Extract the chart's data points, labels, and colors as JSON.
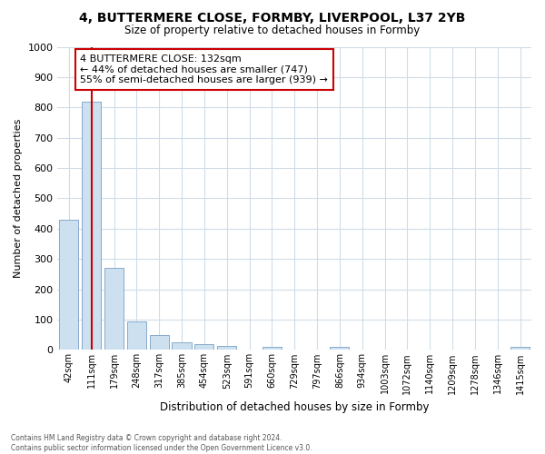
{
  "title_line1": "4, BUTTERMERE CLOSE, FORMBY, LIVERPOOL, L37 2YB",
  "title_line2": "Size of property relative to detached houses in Formby",
  "xlabel": "Distribution of detached houses by size in Formby",
  "ylabel": "Number of detached properties",
  "categories": [
    "42sqm",
    "111sqm",
    "179sqm",
    "248sqm",
    "317sqm",
    "385sqm",
    "454sqm",
    "523sqm",
    "591sqm",
    "660sqm",
    "729sqm",
    "797sqm",
    "866sqm",
    "934sqm",
    "1003sqm",
    "1072sqm",
    "1140sqm",
    "1209sqm",
    "1278sqm",
    "1346sqm",
    "1415sqm"
  ],
  "values": [
    430,
    820,
    270,
    95,
    50,
    25,
    18,
    13,
    0,
    10,
    0,
    0,
    10,
    0,
    0,
    0,
    0,
    0,
    0,
    0,
    10
  ],
  "bar_color": "#cce0f0",
  "bar_edge_color": "#88aacc",
  "highlight_index": 1,
  "vline_color": "#cc0000",
  "annotation_text": "4 BUTTERMERE CLOSE: 132sqm\n← 44% of detached houses are smaller (747)\n55% of semi-detached houses are larger (939) →",
  "annotation_box_color": "#ffffff",
  "annotation_box_edge": "#cc0000",
  "ylim": [
    0,
    1000
  ],
  "yticks": [
    0,
    100,
    200,
    300,
    400,
    500,
    600,
    700,
    800,
    900,
    1000
  ],
  "footer": "Contains HM Land Registry data © Crown copyright and database right 2024.\nContains public sector information licensed under the Open Government Licence v3.0.",
  "background_color": "#ffffff",
  "grid_color": "#d0dce8"
}
